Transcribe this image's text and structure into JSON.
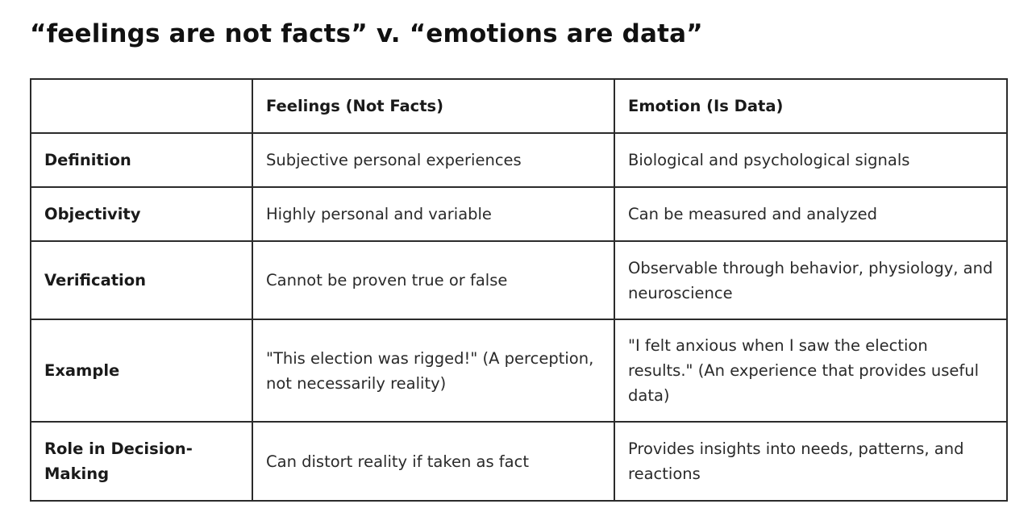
{
  "title": "“feelings are not facts” v. “emotions are data”",
  "table": {
    "headers": [
      "",
      "Feelings (Not Facts)",
      "Emotion (Is Data)"
    ],
    "rows": [
      {
        "label": "Definition",
        "feelings": "Subjective personal experiences",
        "emotion": "Biological and psychological signals"
      },
      {
        "label": "Objectivity",
        "feelings": "Highly personal and variable",
        "emotion": "Can be measured and analyzed"
      },
      {
        "label": "Verification",
        "feelings": "Cannot be proven true or false",
        "emotion": "Observable through behavior, physiology, and neuroscience"
      },
      {
        "label": "Example",
        "feelings": "\"This election was rigged!\" (A perception, not necessarily reality)",
        "emotion": "\"I felt anxious when I saw the election results.\" (An experience that provides useful data)"
      },
      {
        "label": "Role in Decision-Making",
        "feelings": "Can distort reality if taken as fact",
        "emotion": "Provides insights into needs, patterns, and reactions"
      }
    ]
  }
}
